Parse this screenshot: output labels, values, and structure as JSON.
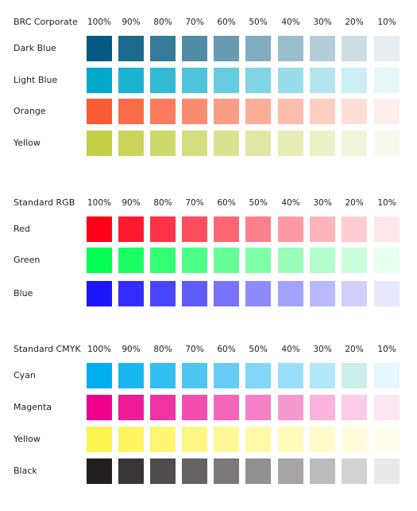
{
  "percent_labels": [
    "100%",
    "90%",
    "80%",
    "70%",
    "60%",
    "50%",
    "40%",
    "30%",
    "20%",
    "10%"
  ],
  "groups": [
    {
      "title": "BRC Corporate",
      "rows": [
        {
          "name": "Dark Blue",
          "colors": [
            "#03597f",
            "#1c6a8c",
            "#357b99",
            "#4f8ba5",
            "#689bb2",
            "#81acbf",
            "#9abdcc",
            "#b3cdd9",
            "#cddee5",
            "#e6eef2"
          ]
        },
        {
          "name": "Light Blue",
          "colors": [
            "#00aacb",
            "#1ab3d0",
            "#33bbd5",
            "#4dc4db",
            "#66cce0",
            "#80d5e5",
            "#99ddea",
            "#b3e6ef",
            "#cceef5",
            "#e6f7fa"
          ]
        },
        {
          "name": "Orange",
          "colors": [
            "#f95b33",
            "#fa6b47",
            "#fa7c5c",
            "#fb8c70",
            "#fb9d85",
            "#fcad99",
            "#fdbdad",
            "#fdcec2",
            "#feded6",
            "#feefeb"
          ]
        },
        {
          "name": "Yellow",
          "colors": [
            "#c3cf46",
            "#c9d459",
            "#cfd96b",
            "#d5dd7e",
            "#dbe290",
            "#e1e7a3",
            "#e7ecb5",
            "#edf1c8",
            "#f3f5da",
            "#f9faed"
          ]
        }
      ]
    },
    {
      "title": "Standard RGB",
      "rows": [
        {
          "name": "Red",
          "colors": [
            "#ff0018",
            "#ff1a2f",
            "#ff3346",
            "#ff4d5d",
            "#ff6674",
            "#ff808c",
            "#ff99a3",
            "#ffb3ba",
            "#ffccd1",
            "#ffe6e8"
          ]
        },
        {
          "name": "Green",
          "colors": [
            "#00ff52",
            "#1aff63",
            "#33ff75",
            "#4dff86",
            "#66ff97",
            "#80ffa9",
            "#99ffba",
            "#b3ffcb",
            "#ccffdc",
            "#e6ffee"
          ]
        },
        {
          "name": "Blue",
          "colors": [
            "#1c16fa",
            "#332dfb",
            "#4945fb",
            "#605cfc",
            "#7773fc",
            "#8e8bfd",
            "#a4a2fd",
            "#bbb9fe",
            "#d2d0fe",
            "#e8e8ff"
          ]
        }
      ]
    },
    {
      "title": "Standard CMYK",
      "rows": [
        {
          "name": "Cyan",
          "colors": [
            "#00aeef",
            "#1ab6f1",
            "#33bef2",
            "#4dc6f4",
            "#66cef5",
            "#80d7f7",
            "#99dff9",
            "#b3e7fa",
            "#ccefec",
            "#e6f7fd"
          ]
        },
        {
          "name": "Magenta",
          "colors": [
            "#ec008c",
            "#ee1a98",
            "#f033a3",
            "#f24daf",
            "#f466ba",
            "#f680c6",
            "#f799d1",
            "#f9b3dd",
            "#fbcce8",
            "#fde6f4"
          ]
        },
        {
          "name": "Yellow",
          "colors": [
            "#fff44f",
            "#fff561",
            "#fff672",
            "#fff784",
            "#fff895",
            "#fffaa7",
            "#fffbb9",
            "#fffcca",
            "#fffddc",
            "#fffeed"
          ]
        },
        {
          "name": "Black",
          "colors": [
            "#231f20",
            "#393536",
            "#4f4c4d",
            "#656263",
            "#7b7979",
            "#918f90",
            "#a7a5a6",
            "#bdbcbc",
            "#d3d2d2",
            "#e9e9e9"
          ]
        }
      ]
    }
  ]
}
